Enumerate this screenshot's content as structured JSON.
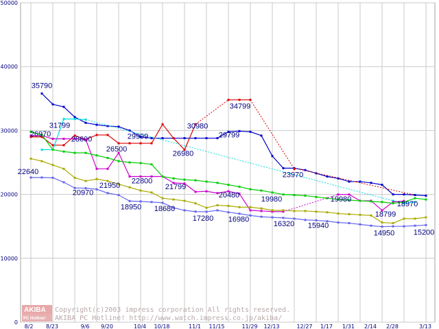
{
  "chart_data": {
    "type": "line",
    "ylim": [
      0,
      50000
    ],
    "yticks": [
      "0",
      "10000",
      "20000",
      "30000",
      "40000",
      "50000"
    ],
    "xtick_labels": [
      "8/2",
      "8/23",
      "9/6",
      "9/20",
      "10/4",
      "10/18",
      "11/1",
      "11/15",
      "11/29",
      "12/13",
      "12/27",
      "1/17",
      "1/31",
      "2/14",
      "2/28",
      "3/13"
    ],
    "grid": true,
    "series": [
      {
        "color": "#0000cc",
        "values": [
          null,
          35790,
          34100,
          33700,
          32100,
          31200,
          30900,
          30700,
          30600,
          30000,
          29000,
          28800,
          28800,
          28800,
          28800,
          28800,
          28800,
          28800,
          29799,
          29900,
          29800,
          29200,
          26000,
          24100,
          24100,
          23800,
          23300,
          22800,
          22500,
          22000,
          22000,
          21800,
          21500,
          20000,
          20000,
          19900,
          19800
        ]
      },
      {
        "color": "#dd0000",
        "values": [
          29000,
          29000,
          27700,
          27700,
          29200,
          28600,
          29300,
          29300,
          28000,
          28000,
          28000,
          28000,
          30980,
          28800,
          26980,
          30980,
          null,
          null,
          34799,
          34799,
          34799,
          null,
          null,
          null,
          23970,
          null,
          null,
          null,
          null,
          null,
          null,
          null,
          null,
          null,
          null,
          null,
          null
        ]
      },
      {
        "color": "#00dddd",
        "values": [
          null,
          27000,
          27000,
          31799,
          31800,
          31700,
          null,
          null,
          null,
          null,
          null,
          null,
          null,
          null,
          null,
          null,
          null,
          null,
          null,
          null,
          null,
          null,
          null,
          null,
          null,
          null,
          null,
          null,
          null,
          null,
          null,
          null,
          null,
          19000,
          18600,
          18800,
          null
        ]
      },
      {
        "color": "#cc00cc",
        "values": [
          29200,
          29200,
          28700,
          28700,
          28700,
          28600,
          24000,
          24000,
          26500,
          22800,
          22800,
          22800,
          22800,
          21799,
          21700,
          20400,
          20480,
          20200,
          20480,
          20100,
          17500,
          17400,
          17300,
          17300,
          null,
          null,
          null,
          null,
          19980,
          19980,
          19000,
          19000,
          17500,
          18800,
          18970,
          null,
          null
        ]
      },
      {
        "color": "#00cc00",
        "values": [
          29800,
          29300,
          27000,
          26700,
          26500,
          26500,
          26100,
          25700,
          25200,
          25000,
          24900,
          24700,
          22800,
          22500,
          22300,
          22200,
          22000,
          21800,
          21500,
          21200,
          20800,
          20600,
          20300,
          19980,
          19900,
          19800,
          19600,
          19400,
          19200,
          19100,
          19000,
          18900,
          18800,
          18600,
          18800,
          19400,
          19200
        ]
      },
      {
        "color": "#aaaa00",
        "values": [
          25600,
          25200,
          24600,
          24000,
          22600,
          22100,
          22400,
          22100,
          21600,
          21100,
          20600,
          20300,
          19400,
          19200,
          19000,
          18600,
          17900,
          18300,
          18200,
          18000,
          18000,
          17800,
          17500,
          17500,
          17400,
          17400,
          17300,
          17200,
          17000,
          16900,
          16800,
          16700,
          15600,
          15500,
          16200,
          16200,
          16400
        ]
      },
      {
        "color": "#6666ee",
        "values": [
          22640,
          22640,
          22600,
          21900,
          21000,
          20970,
          20800,
          20200,
          19900,
          18950,
          18900,
          18800,
          18680,
          17900,
          17500,
          17300,
          17280,
          17500,
          17200,
          16980,
          16700,
          16500,
          16400,
          16320,
          16200,
          16000,
          15940,
          15800,
          15600,
          15500,
          15300,
          15100,
          14950,
          15000,
          15000,
          15100,
          15200
        ]
      }
    ],
    "data_labels": [
      "35790",
      "31799",
      "28600",
      "26970",
      "26500",
      "22640",
      "20970",
      "21950",
      "18950",
      "29999",
      "22800",
      "18680",
      "30980",
      "26980",
      "21799",
      "17280",
      "29799",
      "20480",
      "16980",
      "34799",
      "19980",
      "16320",
      "23970",
      "19980",
      "15940",
      "18799",
      "14950",
      "18970",
      "15200"
    ]
  },
  "watermark": {
    "logo_top": "AKIBA",
    "logo_bottom": "PC Hotline!",
    "line1": "Copyright(c)2003 impress corporation All rights reserved.",
    "line2": "AKIBA PC Hotline!  http://www.watch.impress.co.jp/akiba/"
  }
}
